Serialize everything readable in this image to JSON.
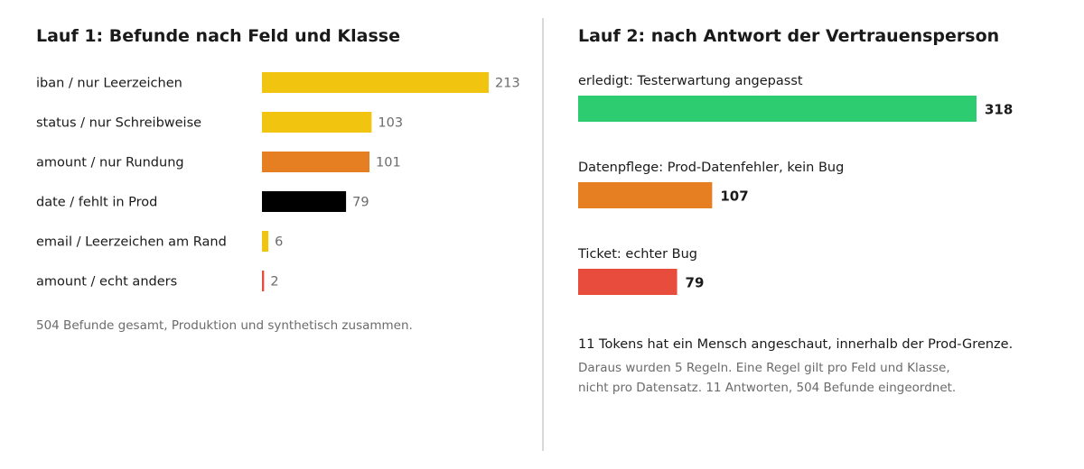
{
  "chart_data": [
    {
      "type": "bar",
      "orientation": "horizontal",
      "title": "Lauf 1: Befunde nach Feld und Klasse",
      "categories": [
        "iban / nur Leerzeichen",
        "status / nur Schreibweise",
        "amount / nur Rundung",
        "date / fehlt in Prod",
        "email / Leerzeichen am Rand",
        "amount / echt anders"
      ],
      "values": [
        213,
        103,
        101,
        79,
        6,
        2
      ],
      "colors": [
        "#f1c40f",
        "#f1c40f",
        "#e67e22",
        "#000000",
        "#f1c40f",
        "#e74c3c"
      ],
      "xlim": [
        0,
        213
      ],
      "grid": false,
      "footnote": "504 Befunde gesamt, Produktion und synthetisch zusammen."
    },
    {
      "type": "bar",
      "orientation": "horizontal",
      "title": "Lauf 2: nach Antwort der Vertrauensperson",
      "categories": [
        "erledigt: Testerwartung angepasst",
        "Datenpflege: Prod-Datenfehler, kein Bug",
        "Ticket: echter Bug"
      ],
      "values": [
        318,
        107,
        79
      ],
      "colors": [
        "#2ecc71",
        "#e67e22",
        "#e74c3c"
      ],
      "xlim": [
        0,
        318
      ],
      "grid": false,
      "summary": "11 Tokens hat ein Mensch angeschaut, innerhalb der Prod-Grenze.",
      "notes": [
        "Daraus wurden 5 Regeln. Eine Regel gilt pro Feld und Klasse,",
        "nicht pro Datensatz. 11 Antworten, 504 Befunde eingeordnet."
      ]
    }
  ]
}
